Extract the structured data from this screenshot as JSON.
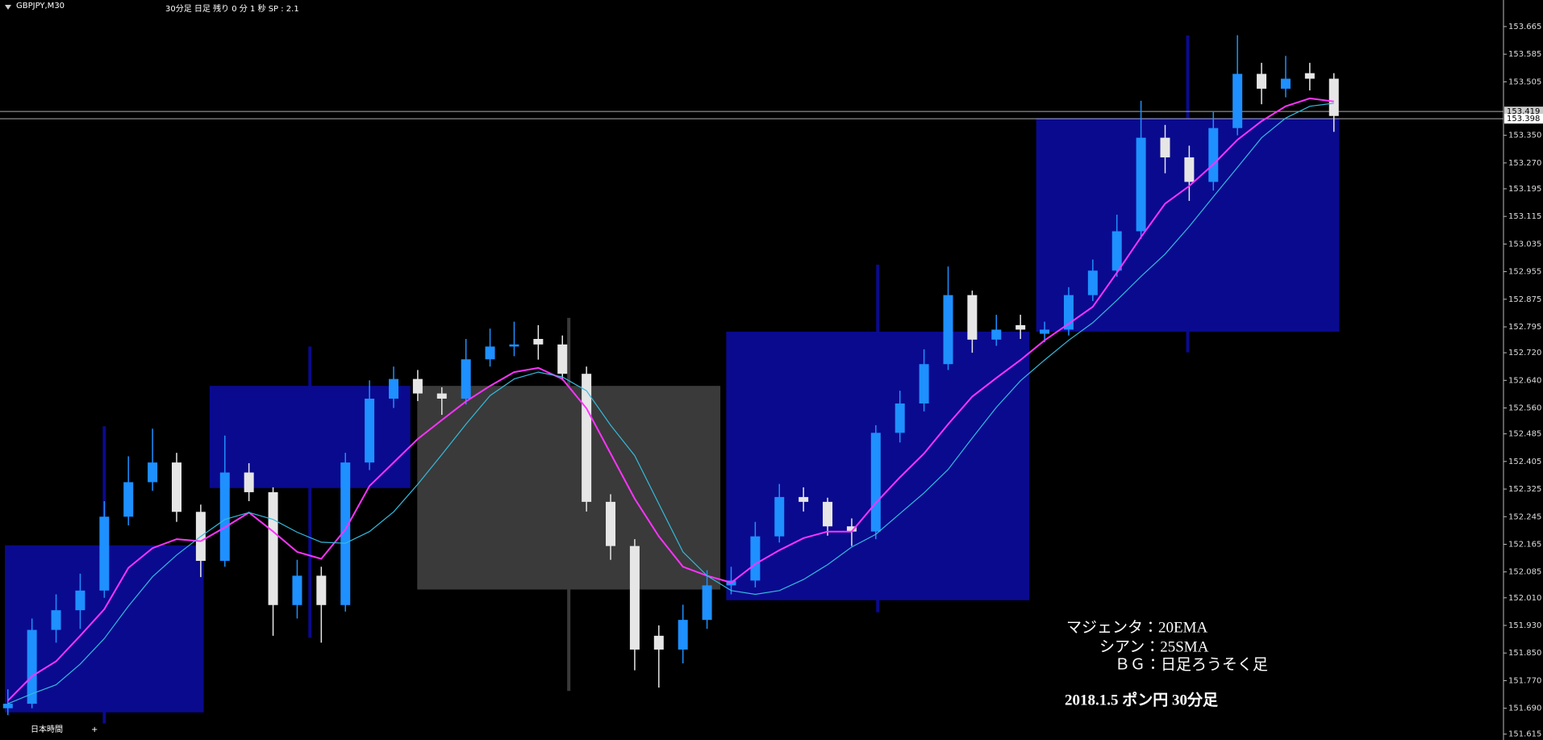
{
  "chart_data": {
    "type": "candlestick",
    "symbol": "GBPJPY,M30",
    "subtitle": "30分足 日足  残り 0 分 1 秒 SP : 2.1",
    "up_color": "#1e90ff",
    "down_color": "#e6e6e6",
    "open": [
      151.69,
      151.703,
      151.917,
      151.974,
      152.031,
      152.245,
      152.345,
      152.402,
      152.259,
      152.117,
      152.373,
      152.316,
      151.989,
      152.074,
      151.989,
      152.402,
      152.587,
      152.644,
      152.602,
      152.587,
      152.701,
      152.738,
      152.76,
      152.744,
      152.659,
      152.288,
      152.16,
      151.9,
      151.86,
      151.946,
      152.046,
      152.06,
      152.188,
      152.302,
      152.288,
      152.217,
      152.202,
      152.488,
      152.573,
      152.687,
      152.887,
      152.758,
      152.8,
      152.775,
      152.787,
      152.887,
      152.958,
      153.072,
      153.343,
      153.286,
      153.215,
      153.371,
      153.528,
      153.485,
      153.53,
      153.514
    ],
    "high": [
      151.745,
      151.95,
      152.02,
      152.08,
      152.29,
      152.42,
      152.5,
      152.43,
      152.28,
      152.48,
      152.4,
      152.33,
      152.12,
      152.1,
      152.43,
      152.64,
      152.68,
      152.67,
      152.62,
      152.76,
      152.79,
      152.81,
      152.8,
      152.77,
      152.68,
      152.31,
      152.18,
      151.93,
      151.99,
      152.09,
      152.1,
      152.23,
      152.34,
      152.33,
      152.3,
      152.24,
      152.51,
      152.61,
      152.73,
      152.97,
      152.9,
      152.83,
      152.83,
      152.81,
      152.91,
      152.99,
      153.12,
      153.45,
      153.38,
      153.32,
      153.42,
      153.64,
      153.56,
      153.58,
      153.56,
      153.53
    ],
    "low": [
      151.67,
      151.69,
      151.88,
      151.92,
      152.01,
      152.22,
      152.32,
      152.23,
      152.07,
      152.1,
      152.29,
      151.9,
      151.95,
      151.88,
      151.97,
      152.38,
      152.56,
      152.58,
      152.54,
      152.57,
      152.68,
      152.71,
      152.7,
      152.64,
      152.26,
      152.12,
      151.8,
      151.75,
      151.82,
      151.92,
      152.02,
      152.04,
      152.17,
      152.26,
      152.19,
      152.16,
      152.18,
      152.46,
      152.55,
      152.67,
      152.72,
      152.74,
      152.76,
      152.75,
      152.77,
      152.87,
      152.94,
      153.05,
      153.24,
      153.16,
      153.19,
      153.35,
      153.44,
      153.46,
      153.48,
      153.36
    ],
    "close": [
      151.703,
      151.917,
      151.974,
      152.031,
      152.245,
      152.345,
      152.402,
      152.259,
      152.117,
      152.373,
      152.316,
      151.989,
      152.074,
      151.989,
      152.402,
      152.587,
      152.644,
      152.602,
      152.587,
      152.701,
      152.738,
      152.744,
      152.744,
      152.659,
      152.288,
      152.16,
      151.86,
      151.86,
      151.946,
      152.046,
      152.06,
      152.188,
      152.302,
      152.288,
      152.217,
      152.202,
      152.488,
      152.573,
      152.687,
      152.887,
      152.758,
      152.787,
      152.787,
      152.787,
      152.887,
      152.958,
      153.072,
      153.343,
      153.286,
      153.215,
      153.371,
      153.528,
      153.485,
      153.514,
      153.514,
      153.406
    ],
    "lines": [
      {
        "color": "#ff33ff",
        "values": [
          151.712,
          151.783,
          151.826,
          151.9,
          151.977,
          152.097,
          152.154,
          152.18,
          152.174,
          152.214,
          152.257,
          152.202,
          152.143,
          152.123,
          152.208,
          152.334,
          152.402,
          152.47,
          152.525,
          152.579,
          152.624,
          152.664,
          152.676,
          152.644,
          152.559,
          152.428,
          152.297,
          152.188,
          152.1,
          152.074,
          152.054,
          152.108,
          152.148,
          152.183,
          152.202,
          152.202,
          152.285,
          152.359,
          152.428,
          152.513,
          152.593,
          152.647,
          152.699,
          152.756,
          152.804,
          152.853,
          152.952,
          153.055,
          153.152,
          153.203,
          153.266,
          153.337,
          153.391,
          153.434,
          153.457,
          153.448
        ]
      },
      {
        "color": "#33bbdd",
        "values": [
          151.703,
          151.732,
          151.758,
          151.818,
          151.892,
          151.986,
          152.071,
          152.134,
          152.188,
          152.237,
          152.257,
          152.237,
          152.2,
          152.171,
          152.168,
          152.202,
          152.259,
          152.339,
          152.425,
          152.513,
          152.596,
          152.644,
          152.664,
          152.65,
          152.61,
          152.51,
          152.422,
          152.282,
          152.143,
          152.074,
          152.031,
          152.02,
          152.031,
          152.063,
          152.106,
          152.157,
          152.194,
          152.254,
          152.314,
          152.382,
          152.473,
          152.562,
          152.639,
          152.699,
          152.756,
          152.807,
          152.872,
          152.941,
          153.006,
          153.086,
          153.172,
          153.257,
          153.343,
          153.4,
          153.434,
          153.443
        ]
      }
    ],
    "daily": {
      "up_color": "#0a0a8e",
      "down_color": "#3a3a3a",
      "open": [
        151.678,
        152.328,
        152.624,
        152.003,
        152.781
      ],
      "high": [
        152.507,
        152.738,
        152.821,
        152.975,
        153.639
      ],
      "low": [
        151.646,
        151.894,
        151.74,
        151.968,
        152.721
      ],
      "close": [
        152.162,
        152.624,
        152.034,
        152.781,
        153.4
      ]
    },
    "price_lines": [
      153.419,
      153.398
    ],
    "ylim": [
      151.598,
      153.742
    ],
    "yticks": [
      153.665,
      153.585,
      153.505,
      {
        "value": 153.35,
        "label": "153.350"
      },
      {
        "value": 153.27,
        "label": "153.270"
      },
      153.195,
      153.115,
      153.035,
      152.955,
      152.875,
      152.795,
      {
        "value": 152.72,
        "label": "152.720"
      },
      {
        "value": 152.64,
        "label": "152.640"
      },
      {
        "value": 152.56,
        "label": "152.560"
      },
      152.485,
      152.405,
      152.325,
      152.245,
      152.165,
      152.085,
      {
        "value": 152.01,
        "label": "152.010"
      },
      {
        "value": 151.93,
        "label": "151.930"
      },
      {
        "value": 151.85,
        "label": "151.850"
      },
      {
        "value": 151.77,
        "label": "151.770"
      },
      {
        "value": 151.69,
        "label": "151.690"
      },
      151.615
    ],
    "annotations": [
      "マジェンタ：20EMA",
      "シアン：25SMA",
      "ＢＧ：日足ろうそく足",
      "2018.1.5 ポン円 30分足"
    ],
    "footer": [
      "日本時間",
      "+"
    ]
  }
}
